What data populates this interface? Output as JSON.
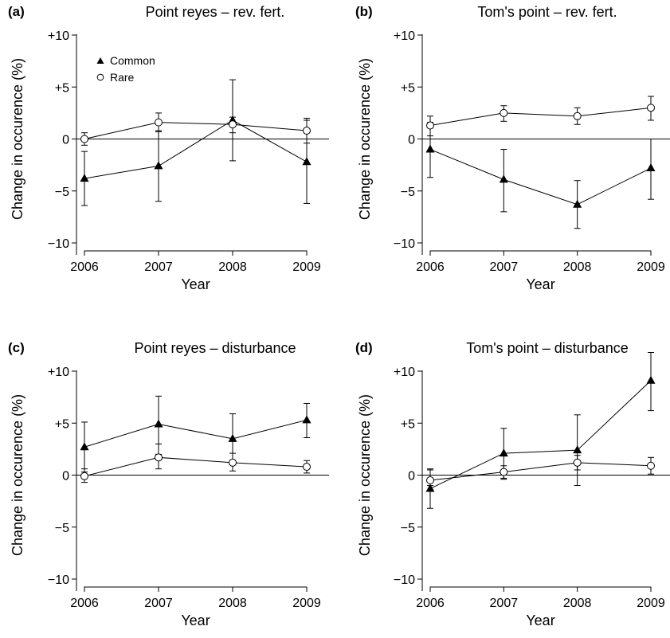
{
  "figure": {
    "legend": {
      "common_label": "Common",
      "rare_label": "Rare",
      "common_marker": "filled-triangle",
      "rare_marker": "open-circle"
    }
  },
  "chart_data": [
    {
      "type": "line",
      "panel": "(a)",
      "title": "Point reyes – rev. fert.",
      "xlabel": "Year",
      "ylabel": "Change in occurence (%)",
      "x": [
        2006,
        2007,
        2008,
        2009
      ],
      "xticks": [
        "2006",
        "2007",
        "2008",
        "2009"
      ],
      "yticks": [
        "+10",
        "+5",
        "0",
        "−5",
        "−10"
      ],
      "ylim": [
        -11,
        10
      ],
      "zero_line": true,
      "grid": false,
      "legend": "top-left",
      "series": [
        {
          "name": "Common",
          "marker": "filled-triangle",
          "values": [
            -3.8,
            -2.6,
            1.8,
            -2.2
          ],
          "err_low": [
            -6.4,
            -6.0,
            -2.1,
            -6.2
          ],
          "err_high": [
            -1.2,
            0.8,
            5.7,
            1.8
          ]
        },
        {
          "name": "Rare",
          "marker": "open-circle",
          "values": [
            0.0,
            1.6,
            1.4,
            0.8
          ],
          "err_low": [
            -0.6,
            0.7,
            0.6,
            -0.4
          ],
          "err_high": [
            0.6,
            2.5,
            2.1,
            2.0
          ]
        }
      ]
    },
    {
      "type": "line",
      "panel": "(b)",
      "title": "Tom's point – rev. fert.",
      "xlabel": "Year",
      "ylabel": "Change in occurence (%)",
      "x": [
        2006,
        2007,
        2008,
        2009
      ],
      "xticks": [
        "2006",
        "2007",
        "2008",
        "2009"
      ],
      "yticks": [
        "+10",
        "+5",
        "0",
        "−5",
        "−10"
      ],
      "ylim": [
        -11,
        10
      ],
      "zero_line": true,
      "grid": false,
      "series": [
        {
          "name": "Common",
          "marker": "filled-triangle",
          "values": [
            -1.0,
            -3.9,
            -6.3,
            -2.8
          ],
          "err_low": [
            -3.7,
            -7.0,
            -8.6,
            -5.8
          ],
          "err_high": [
            1.6,
            -1.0,
            -4.0,
            0.0
          ]
        },
        {
          "name": "Rare",
          "marker": "open-circle",
          "values": [
            1.3,
            2.5,
            2.2,
            3.0
          ],
          "err_low": [
            0.3,
            1.7,
            1.4,
            1.8
          ],
          "err_high": [
            2.2,
            3.2,
            3.0,
            4.1
          ]
        }
      ]
    },
    {
      "type": "line",
      "panel": "(c)",
      "title": "Point reyes – disturbance",
      "xlabel": "Year",
      "ylabel": "Change in occurence (%)",
      "x": [
        2006,
        2007,
        2008,
        2009
      ],
      "xticks": [
        "2006",
        "2007",
        "2008",
        "2009"
      ],
      "yticks": [
        "+10",
        "+5",
        "0",
        "−5",
        "−10"
      ],
      "ylim": [
        -11,
        10
      ],
      "zero_line": true,
      "grid": false,
      "series": [
        {
          "name": "Common",
          "marker": "filled-triangle",
          "values": [
            2.7,
            4.9,
            3.5,
            5.3
          ],
          "err_low": [
            0.3,
            2.0,
            1.0,
            3.6
          ],
          "err_high": [
            5.1,
            7.6,
            5.9,
            6.9
          ]
        },
        {
          "name": "Rare",
          "marker": "open-circle",
          "values": [
            -0.1,
            1.7,
            1.2,
            0.8
          ],
          "err_low": [
            -0.7,
            0.6,
            0.4,
            0.2
          ],
          "err_high": [
            0.6,
            3.0,
            2.1,
            1.4
          ]
        }
      ]
    },
    {
      "type": "line",
      "panel": "(d)",
      "title": "Tom's point – disturbance",
      "xlabel": "Year",
      "ylabel": "Change in occurence (%)",
      "x": [
        2006,
        2007,
        2008,
        2009
      ],
      "xticks": [
        "2006",
        "2007",
        "2008",
        "2009"
      ],
      "yticks": [
        "+10",
        "+5",
        "0",
        "−5",
        "−10"
      ],
      "ylim": [
        -11,
        10
      ],
      "zero_line": true,
      "grid": false,
      "series": [
        {
          "name": "Common",
          "marker": "filled-triangle",
          "values": [
            -1.3,
            2.1,
            2.4,
            9.1
          ],
          "err_low": [
            -3.2,
            -0.4,
            -1.0,
            6.2
          ],
          "err_high": [
            0.6,
            4.5,
            5.8,
            11.8
          ]
        },
        {
          "name": "Rare",
          "marker": "open-circle",
          "values": [
            -0.5,
            0.3,
            1.2,
            0.9
          ],
          "err_low": [
            -1.0,
            -0.3,
            0.5,
            0.1
          ],
          "err_high": [
            0.5,
            0.9,
            1.9,
            1.7
          ]
        }
      ]
    }
  ]
}
